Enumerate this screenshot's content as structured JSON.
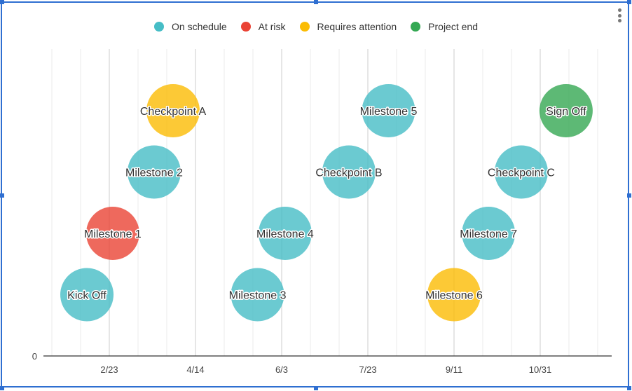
{
  "menu": {
    "icon": "more-vert-icon"
  },
  "chart_data": {
    "type": "scatter",
    "title": "",
    "xlabel": "",
    "ylabel": "",
    "x_type": "date",
    "xlim": [
      "1/21",
      "12/9"
    ],
    "ylim": [
      0,
      5
    ],
    "y_ticks": [
      "0"
    ],
    "x_ticks": [
      "2/23",
      "4/14",
      "6/3",
      "7/23",
      "9/11",
      "10/31"
    ],
    "grid": "vertical",
    "legend_position": "top",
    "legend": [
      {
        "name": "On schedule",
        "color": "#46bdc6"
      },
      {
        "name": "At risk",
        "color": "#ea4335"
      },
      {
        "name": "Requires attention",
        "color": "#fbbc04"
      },
      {
        "name": "Project end",
        "color": "#34a853"
      }
    ],
    "points": [
      {
        "label": "Kick Off",
        "date": "2/10",
        "y": 1,
        "status": "On schedule"
      },
      {
        "label": "Milestone 1",
        "date": "2/25",
        "y": 2,
        "status": "At risk"
      },
      {
        "label": "Milestone 2",
        "date": "3/21",
        "y": 3,
        "status": "On schedule"
      },
      {
        "label": "Checkpoint A",
        "date": "4/1",
        "y": 4,
        "status": "Requires attention"
      },
      {
        "label": "Milestone 3",
        "date": "5/20",
        "y": 1,
        "status": "On schedule"
      },
      {
        "label": "Milestone 4",
        "date": "6/5",
        "y": 2,
        "status": "On schedule"
      },
      {
        "label": "Checkpoint B",
        "date": "7/12",
        "y": 3,
        "status": "On schedule"
      },
      {
        "label": "Milestone 5",
        "date": "8/4",
        "y": 4,
        "status": "On schedule"
      },
      {
        "label": "Milestone 6",
        "date": "9/11",
        "y": 1,
        "status": "Requires attention"
      },
      {
        "label": "Milestone 7",
        "date": "10/1",
        "y": 2,
        "status": "On schedule"
      },
      {
        "label": "Checkpoint C",
        "date": "10/20",
        "y": 3,
        "status": "On schedule"
      },
      {
        "label": "Sign Off",
        "date": "11/15",
        "y": 4,
        "status": "Project end"
      }
    ]
  }
}
